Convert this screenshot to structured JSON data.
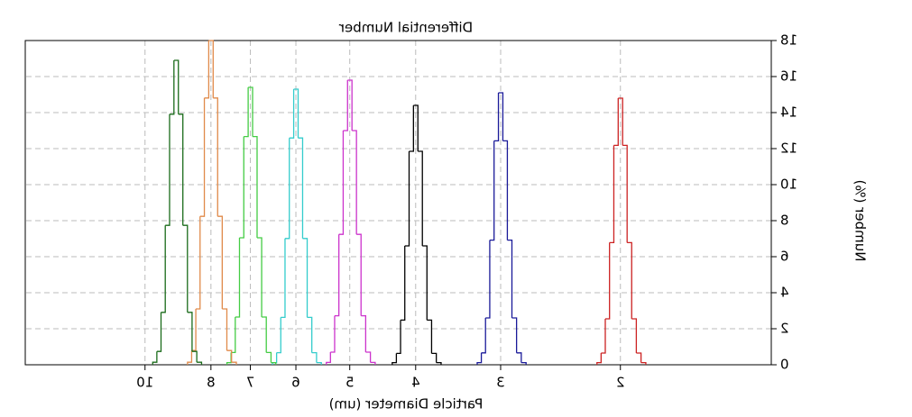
{
  "chart_data": {
    "type": "histogram",
    "title": "Differential Number",
    "xlabel": "Particle Diameter (um)",
    "ylabel": "Number (%)",
    "xscale": "log",
    "xlim": [
      1.2,
      15
    ],
    "xticks": [
      2,
      3,
      4,
      5,
      6,
      7,
      8,
      10
    ],
    "ylim": [
      0,
      18
    ],
    "yticks": [
      0,
      2,
      4,
      6,
      8,
      10,
      12,
      14,
      16,
      18
    ],
    "grid": true,
    "mirrored": true,
    "series": [
      {
        "color": "#cc2222",
        "bins": [
          1.835,
          1.865,
          1.895,
          1.925,
          1.955,
          1.985,
          2.015,
          2.045,
          2.075,
          2.105,
          2.135,
          2.165
        ],
        "values": [
          0.12,
          0.65,
          2.55,
          6.78,
          12.18,
          14.8,
          12.18,
          6.78,
          2.55,
          0.65,
          0.12
        ]
      },
      {
        "color": "#1a1a99",
        "bins": [
          2.7525,
          2.7975,
          2.8425,
          2.8875,
          2.9325,
          2.9775,
          3.0225,
          3.0675,
          3.1125,
          3.1575,
          3.2025,
          3.2475
        ],
        "values": [
          0.12,
          0.66,
          2.6,
          6.92,
          12.43,
          15.1,
          12.43,
          6.92,
          2.6,
          0.66,
          0.12
        ]
      },
      {
        "color": "#000000",
        "bins": [
          3.67,
          3.73,
          3.79,
          3.85,
          3.91,
          3.97,
          4.03,
          4.09,
          4.15,
          4.21,
          4.27,
          4.33
        ],
        "values": [
          0.12,
          0.63,
          2.48,
          6.6,
          11.85,
          14.4,
          11.85,
          6.6,
          2.48,
          0.63,
          0.12
        ]
      },
      {
        "color": "#cc33cc",
        "bins": [
          4.5875,
          4.6625,
          4.7375,
          4.8125,
          4.8875,
          4.9625,
          5.0375,
          5.1125,
          5.1875,
          5.2625,
          5.3375,
          5.4125
        ],
        "values": [
          0.13,
          0.7,
          2.72,
          7.24,
          13.0,
          15.8,
          13.0,
          7.24,
          2.72,
          0.7,
          0.13
        ]
      },
      {
        "color": "#33cccc",
        "bins": [
          5.505,
          5.595,
          5.685,
          5.775,
          5.865,
          5.955,
          6.045,
          6.135,
          6.225,
          6.315,
          6.405,
          6.495
        ],
        "values": [
          0.12,
          0.67,
          2.63,
          7.01,
          12.59,
          15.3,
          12.59,
          7.01,
          2.63,
          0.67,
          0.12
        ]
      },
      {
        "color": "#44cc44",
        "bins": [
          6.4225,
          6.5275,
          6.6325,
          6.7375,
          6.8425,
          6.9475,
          7.0525,
          7.1575,
          7.2625,
          7.3675,
          7.4725,
          7.5775
        ],
        "values": [
          0.12,
          0.68,
          2.65,
          7.05,
          12.67,
          15.4,
          12.67,
          7.05,
          2.65,
          0.68,
          0.12
        ]
      },
      {
        "color": "#e08a4a",
        "bins": [
          7.34,
          7.46,
          7.58,
          7.7,
          7.82,
          7.94,
          8.06,
          8.18,
          8.3,
          8.42,
          8.54,
          8.66
        ],
        "values": [
          0.14,
          0.79,
          3.1,
          8.24,
          14.81,
          18,
          14.81,
          8.24,
          3.1,
          0.79,
          0.14
        ]
      },
      {
        "color": "#1a6b1a",
        "bins": [
          8.2575,
          8.3925,
          8.5275,
          8.6625,
          8.7975,
          8.9325,
          9.0675,
          9.2025,
          9.3375,
          9.4725,
          9.6075,
          9.7425
        ],
        "values": [
          0.14,
          0.74,
          2.91,
          7.74,
          13.91,
          16.9,
          13.91,
          7.74,
          2.91,
          0.74,
          0.14
        ]
      }
    ]
  }
}
